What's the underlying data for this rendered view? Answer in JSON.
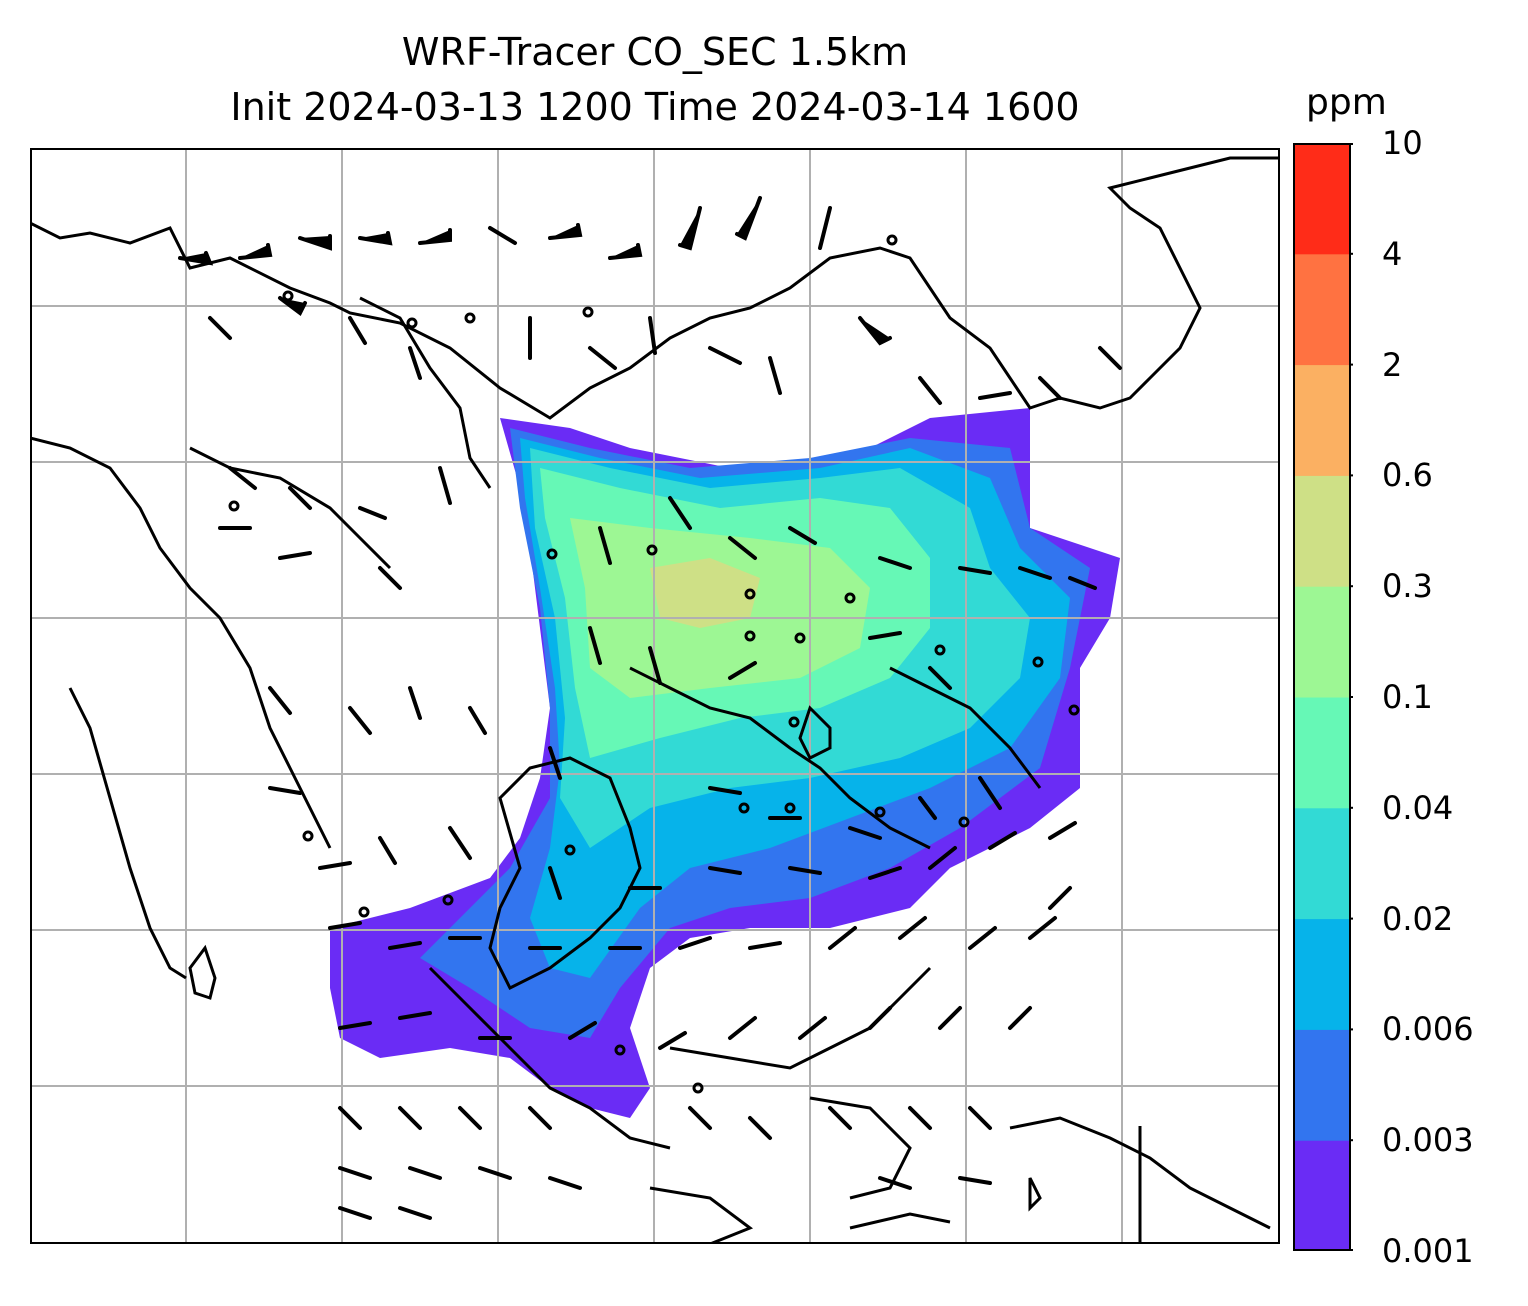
{
  "title": {
    "line1": "WRF-Tracer CO_SEC 1.5km",
    "line2": "Init 2024-03-13 1200 Time 2024-03-14 1600"
  },
  "colorbar": {
    "unit": "ppm",
    "levels": [
      "0.001",
      "0.003",
      "0.006",
      "0.02",
      "0.04",
      "0.1",
      "0.3",
      "0.6",
      "2",
      "4",
      "10"
    ],
    "colors": [
      "#6a2cf5",
      "#3275ef",
      "#06b3ea",
      "#32dad5",
      "#66f8b6",
      "#9df794",
      "#cee086",
      "#fbb062",
      "#ff7241",
      "#ff2c18"
    ]
  },
  "map": {
    "gridlines": true,
    "field": "CO_SEC tracer concentration with wind barbs"
  }
}
